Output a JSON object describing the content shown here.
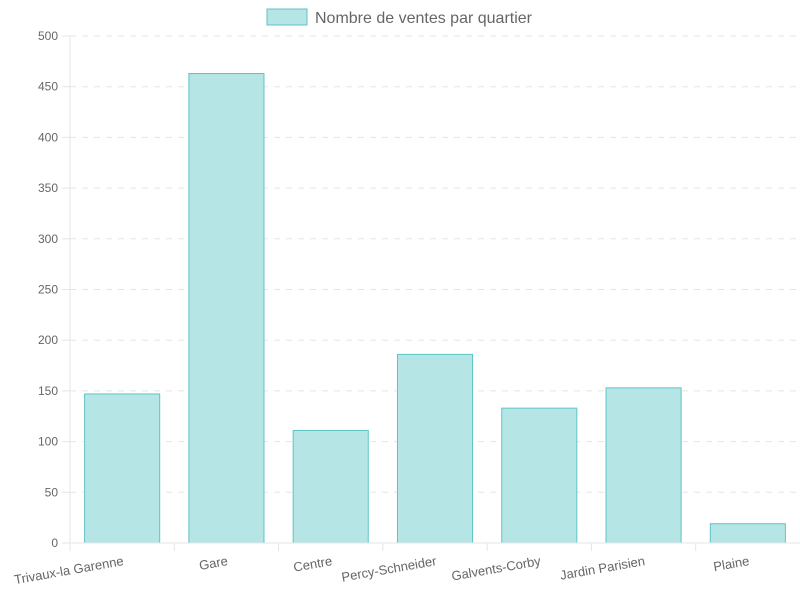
{
  "chart_data": {
    "type": "bar",
    "legend": {
      "label": "Nombre de ventes par quartier",
      "placement": "top-center"
    },
    "categories": [
      "Trivaux-la Garenne",
      "Gare",
      "Centre",
      "Percy-Schneider",
      "Galvents-Corby",
      "Jardin Parisien",
      "Plaine"
    ],
    "series": [
      {
        "name": "Nombre de ventes par quartier",
        "values": [
          147,
          463,
          111,
          186,
          133,
          153,
          19
        ]
      }
    ],
    "y_ticks": [
      "0",
      "50",
      "100",
      "150",
      "200",
      "250",
      "300",
      "350",
      "400",
      "450",
      "500"
    ],
    "ylim": [
      0,
      500
    ],
    "grid": true,
    "colors": {
      "bar_fill": "#b5e5e5",
      "bar_stroke": "#5ec4c6",
      "grid": "#e5e5e5",
      "tick_text": "#666666",
      "legend_text": "#666666"
    }
  }
}
